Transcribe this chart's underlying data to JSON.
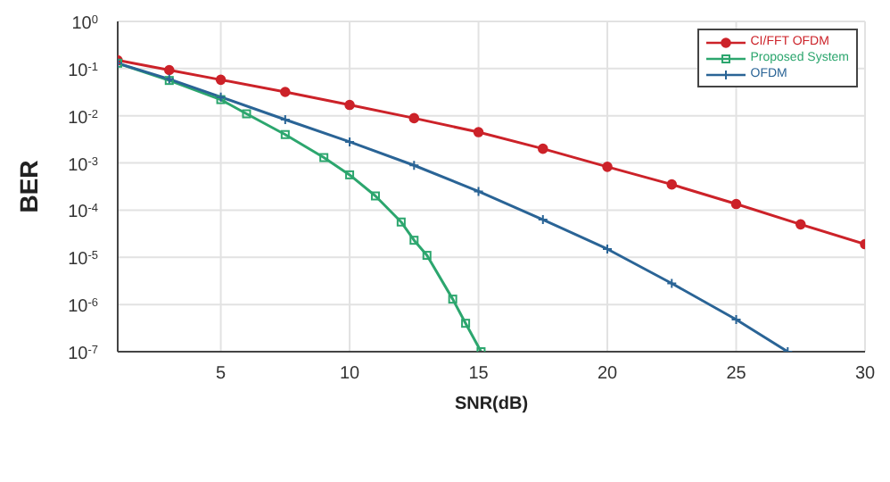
{
  "chart_data": {
    "type": "line",
    "xlabel": "SNR(dB)",
    "ylabel": "BER",
    "log": "y",
    "grid": true,
    "legend": "top right",
    "xlim": [
      1,
      30
    ],
    "xticks": [
      5,
      10,
      15,
      20,
      25,
      30
    ],
    "ylim": [
      1e-07,
      1
    ],
    "yticks": [
      {
        "value": 1,
        "label": "10$^{0}$"
      },
      {
        "value": 0.1,
        "label": "10$^{-1}$"
      },
      {
        "value": 0.01,
        "label": "10$^{-2}$"
      },
      {
        "value": 0.001,
        "label": "10$^{-3}$"
      },
      {
        "value": 0.0001,
        "label": "10$^{-4}$"
      },
      {
        "value": 1e-05,
        "label": "10$^{-5}$"
      },
      {
        "value": 1e-06,
        "label": "10$^{-6}$"
      },
      {
        "value": 1e-07,
        "label": "10$^{-7}$"
      }
    ],
    "series": [
      {
        "name": "CI/FFT OFDM",
        "color": "#cc2229",
        "marker": "circle",
        "x": [
          1,
          3,
          5,
          7.5,
          10,
          12.5,
          15,
          17.5,
          20,
          22.5,
          25,
          27.5,
          30
        ],
        "values": [
          0.15,
          0.093,
          0.058,
          0.032,
          0.017,
          0.0089,
          0.0045,
          0.002,
          0.00083,
          0.00035,
          0.000135,
          5e-05,
          1.9e-05
        ]
      },
      {
        "name": "Proposed System",
        "color": "#2ca66e",
        "marker": "square",
        "x": [
          1,
          3,
          5,
          6,
          7.5,
          9,
          10,
          11,
          12,
          12.5,
          13,
          14,
          14.5,
          15.1
        ],
        "values": [
          0.13,
          0.056,
          0.022,
          0.011,
          0.004,
          0.0013,
          0.00056,
          0.0002,
          5.6e-05,
          2.3e-05,
          1.1e-05,
          1.3e-06,
          4e-07,
          1e-07
        ]
      },
      {
        "name": "OFDM",
        "color": "#2a6496",
        "marker": "cross",
        "x": [
          1,
          3,
          5,
          7.5,
          10,
          12.5,
          15,
          17.5,
          20,
          22.5,
          25,
          27
        ],
        "values": [
          0.13,
          0.06,
          0.025,
          0.0083,
          0.0028,
          0.00089,
          0.00025,
          6.3e-05,
          1.5e-05,
          2.8e-06,
          4.8e-07,
          1e-07
        ]
      }
    ]
  }
}
